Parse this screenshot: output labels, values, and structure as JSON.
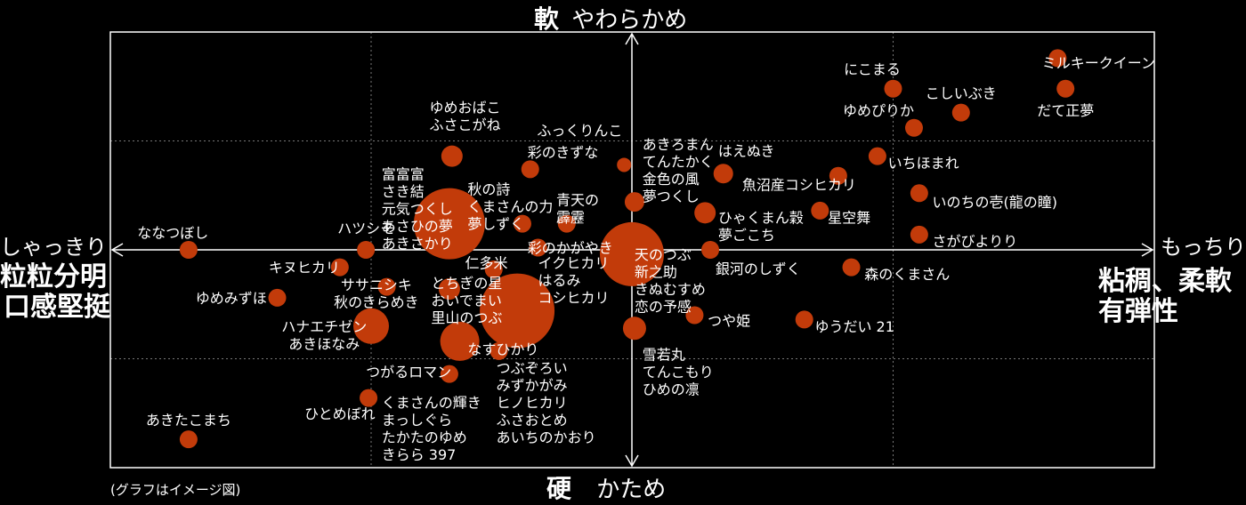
{
  "chart_data": {
    "type": "scatter",
    "note": "(グラフはイメージ図)",
    "axes": {
      "top": {
        "kanji": "軟",
        "text": "やわらかめ"
      },
      "bottom": {
        "kanji": "硬",
        "text": "かため"
      },
      "left": {
        "line1": "しゃっきり",
        "line2": "粒粒分明",
        "line3": "口感堅挺"
      },
      "right": {
        "line1": "もっちり",
        "line2": "粘稠、柔軟",
        "line3": "有弾性"
      }
    },
    "xlim": [
      -10,
      10
    ],
    "ylim": [
      -10,
      10
    ],
    "grid": true,
    "color": "#c23b0a",
    "points": [
      {
        "x": 8.15,
        "y": 8.8,
        "r": 10,
        "labels": [
          "ミルキークイーン"
        ],
        "lx": 7.85,
        "ly": 8.6,
        "anchor": "start"
      },
      {
        "x": 5.0,
        "y": 7.4,
        "r": 10,
        "labels": [
          "にこまる"
        ],
        "lx": 4.6,
        "ly": 8.3,
        "anchor": "middle"
      },
      {
        "x": 8.3,
        "y": 7.4,
        "r": 10,
        "labels": [
          "だて正夢"
        ],
        "lx": 8.3,
        "ly": 6.4,
        "anchor": "middle"
      },
      {
        "x": 6.3,
        "y": 6.3,
        "r": 10,
        "labels": [
          "こしいぶき"
        ],
        "lx": 6.3,
        "ly": 7.2,
        "anchor": "middle"
      },
      {
        "x": 5.4,
        "y": 5.6,
        "r": 10,
        "labels": [
          "ゆめぴりか"
        ],
        "lx": 5.4,
        "ly": 6.4,
        "anchor": "end"
      },
      {
        "x": 4.7,
        "y": 4.3,
        "r": 10,
        "labels": [
          "いちほまれ"
        ],
        "lx": 4.9,
        "ly": 4.0,
        "anchor": "start"
      },
      {
        "x": 3.95,
        "y": 3.4,
        "r": 10,
        "labels": [
          "魚沼産コシヒカリ"
        ],
        "lx": 3.2,
        "ly": 3.0,
        "anchor": "middle"
      },
      {
        "x": 5.5,
        "y": 2.6,
        "r": 10,
        "labels": [
          "いのちの壱(龍の瞳)"
        ],
        "lx": 5.75,
        "ly": 2.2,
        "anchor": "start"
      },
      {
        "x": 3.6,
        "y": 1.8,
        "r": 10,
        "labels": [
          "星空舞"
        ],
        "lx": 3.75,
        "ly": 1.5,
        "anchor": "start"
      },
      {
        "x": 5.5,
        "y": 0.7,
        "r": 10,
        "labels": [
          "さがびよりり"
        ],
        "lx": 5.75,
        "ly": 0.4,
        "anchor": "start"
      },
      {
        "x": 4.2,
        "y": -0.8,
        "r": 10,
        "labels": [
          "森のくまさん"
        ],
        "lx": 4.45,
        "ly": -1.1,
        "anchor": "start"
      },
      {
        "x": 3.3,
        "y": -3.2,
        "r": 10,
        "labels": [
          "ゆうだい 21"
        ],
        "lx": 3.5,
        "ly": -3.5,
        "anchor": "start"
      },
      {
        "x": 1.75,
        "y": 3.5,
        "r": 11,
        "labels": [
          "はえぬき"
        ],
        "lx": 1.65,
        "ly": 4.55,
        "anchor": "start"
      },
      {
        "x": 1.4,
        "y": 1.7,
        "r": 12,
        "labels": [
          "ひゃくまん穀",
          "夢ごこち"
        ],
        "lx": 1.65,
        "ly": 1.5,
        "anchor": "start"
      },
      {
        "x": 1.5,
        "y": 0.0,
        "r": 10,
        "labels": [
          "銀河のしずく"
        ],
        "lx": 1.6,
        "ly": -0.85,
        "anchor": "start"
      },
      {
        "x": 1.2,
        "y": -3.0,
        "r": 10,
        "labels": [
          "つや姫"
        ],
        "lx": 1.45,
        "ly": -3.25,
        "anchor": "start"
      },
      {
        "x": -0.15,
        "y": 3.9,
        "r": 8,
        "labels": [
          "ふっくりんこ"
        ],
        "lx": -1.0,
        "ly": 5.5,
        "anchor": "middle"
      },
      {
        "x": 0.05,
        "y": 2.2,
        "r": 11,
        "labels": [
          "あきろまん",
          "てんたかく",
          "金色の風",
          "夢つくし"
        ],
        "lx": 0.2,
        "ly": 4.85,
        "anchor": "start"
      },
      {
        "x": 0.0,
        "y": -0.2,
        "r": 36,
        "labels": [
          "天のつぶ",
          "新之助",
          "きぬむすめ",
          "恋の予感"
        ],
        "lx": 0.05,
        "ly": -0.2,
        "anchor": "start"
      },
      {
        "x": 0.05,
        "y": -3.6,
        "r": 13,
        "labels": [
          "雪若丸",
          "てんこもり",
          "ひめの凛"
        ],
        "lx": 0.2,
        "ly": -4.8,
        "anchor": "start"
      },
      {
        "x": -1.95,
        "y": 3.7,
        "r": 10,
        "labels": [
          "彩のきずな"
        ],
        "lx": -2.0,
        "ly": 4.5,
        "anchor": "start"
      },
      {
        "x": -2.1,
        "y": 1.2,
        "r": 10,
        "labels": [
          "秋の詩",
          "くまさんの力",
          "夢しずく"
        ],
        "lx": -3.15,
        "ly": 2.8,
        "anchor": "start"
      },
      {
        "x": -1.25,
        "y": 1.2,
        "r": 10,
        "labels": [
          "青天の",
          "霹靂"
        ],
        "lx": -1.45,
        "ly": 2.3,
        "anchor": "start"
      },
      {
        "x": -1.8,
        "y": 0.1,
        "r": 10,
        "labels": [
          "彩のかがやき"
        ],
        "lx": -2.0,
        "ly": 0.1,
        "anchor": "start"
      },
      {
        "x": -3.45,
        "y": 4.3,
        "r": 12,
        "labels": [
          "ゆめおばこ",
          "ふさこがね"
        ],
        "lx": -3.2,
        "ly": 6.55,
        "anchor": "middle"
      },
      {
        "x": -3.5,
        "y": 1.2,
        "r": 40,
        "labels": [
          "富富富",
          "さき結",
          "元気つくし",
          "あさひの夢",
          "あきさかり"
        ],
        "lx": -4.8,
        "ly": 3.5,
        "anchor": "start"
      },
      {
        "x": -2.65,
        "y": -0.9,
        "r": 10,
        "labels": [
          "仁多米"
        ],
        "lx": -3.2,
        "ly": -0.6,
        "anchor": "start"
      },
      {
        "x": -2.2,
        "y": -2.8,
        "r": 42,
        "labels": [
          "イクヒカリ",
          "はるみ",
          "コシヒカリ"
        ],
        "lx": -1.8,
        "ly": -0.6,
        "anchor": "start"
      },
      {
        "x": -3.5,
        "y": -1.8,
        "r": 12,
        "labels": [
          "とちぎの星",
          "おいでまい",
          "里山のつぶ"
        ],
        "lx": -3.85,
        "ly": -1.5,
        "anchor": "start"
      },
      {
        "x": -3.3,
        "y": -4.2,
        "r": 22,
        "labels": [
          "なすひかり"
        ],
        "lx": -3.15,
        "ly": -4.55,
        "anchor": "start"
      },
      {
        "x": -2.55,
        "y": -4.65,
        "r": 10,
        "labels": [
          "つぶぞろい",
          "みずかがみ",
          "ヒノヒカリ",
          "ふさおとめ",
          "あいちのかおり"
        ],
        "lx": -2.6,
        "ly": -5.4,
        "anchor": "start"
      },
      {
        "x": -3.5,
        "y": -5.7,
        "r": 10,
        "labels": [
          "つがるロマン"
        ],
        "lx": -5.1,
        "ly": -5.6,
        "anchor": "start"
      },
      {
        "x": -2.7,
        "y": -6.8,
        "r": 0,
        "labels": [
          "くまさんの輝き",
          "まっしぐら",
          "たかたのゆめ",
          "きらら 397"
        ],
        "lx": -4.8,
        "ly": -7.0,
        "anchor": "start"
      },
      {
        "x": -5.1,
        "y": 0.0,
        "r": 10,
        "labels": [
          "ハツシモ"
        ],
        "lx": -5.1,
        "ly": 1.0,
        "anchor": "middle"
      },
      {
        "x": -5.6,
        "y": -0.8,
        "r": 10,
        "labels": [
          "キヌヒカリ"
        ],
        "lx": -5.6,
        "ly": -0.8,
        "anchor": "end"
      },
      {
        "x": -4.7,
        "y": -1.7,
        "r": 10,
        "labels": [
          "ササニシキ",
          "秋のきらめき"
        ],
        "lx": -4.9,
        "ly": -1.6,
        "anchor": "middle"
      },
      {
        "x": -5.0,
        "y": -3.5,
        "r": 20,
        "labels": [
          "ハナエチゼン",
          "あきほなみ"
        ],
        "lx": -5.9,
        "ly": -3.5,
        "anchor": "middle"
      },
      {
        "x": -5.05,
        "y": -6.8,
        "r": 10,
        "labels": [
          "ひとめぼれ"
        ],
        "lx": -5.6,
        "ly": -7.5,
        "anchor": "middle"
      },
      {
        "x": -8.5,
        "y": 0.0,
        "r": 10,
        "labels": [
          "ななつぼし"
        ],
        "lx": -8.8,
        "ly": 0.8,
        "anchor": "middle"
      },
      {
        "x": -6.8,
        "y": -2.2,
        "r": 10,
        "labels": [
          "ゆめみずほ"
        ],
        "lx": -7.0,
        "ly": -2.2,
        "anchor": "end"
      },
      {
        "x": -8.5,
        "y": -8.7,
        "r": 10,
        "labels": [
          "あきたこまち"
        ],
        "lx": -8.5,
        "ly": -7.8,
        "anchor": "middle"
      }
    ]
  }
}
